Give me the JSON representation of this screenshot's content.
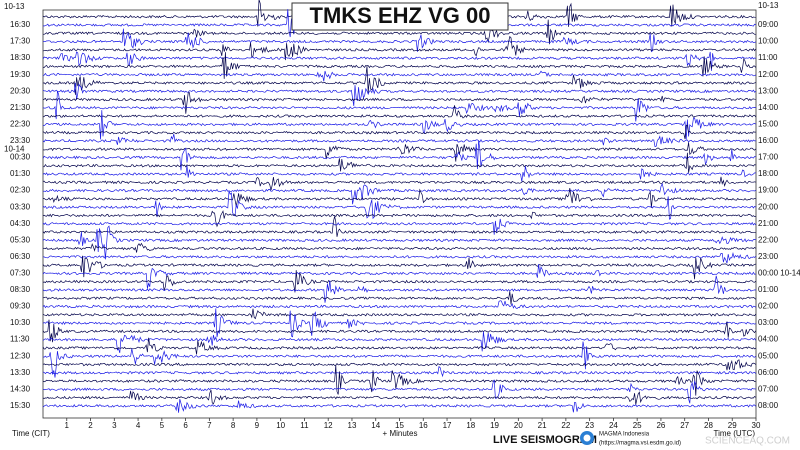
{
  "chart_data": {
    "type": "helicorder",
    "title": "TMKS EHZ VG 00",
    "xlabel": "+ Minutes",
    "left_axis_title": "Time (CIT)",
    "right_axis_title": "Time (UTC)",
    "xlim": [
      0,
      30
    ],
    "xticks": [
      1,
      2,
      3,
      4,
      5,
      6,
      7,
      8,
      9,
      10,
      11,
      12,
      13,
      14,
      15,
      16,
      17,
      18,
      19,
      20,
      21,
      22,
      23,
      24,
      25,
      26,
      27,
      28,
      29,
      30
    ],
    "left_labels": [
      "10-13",
      "16:30",
      "17:30",
      "18:30",
      "19:30",
      "20:30",
      "21:30",
      "22:30",
      "23:30",
      "10-14",
      "00:30",
      "01:30",
      "02:30",
      "03:30",
      "04:30",
      "05:30",
      "06:30",
      "07:30",
      "08:30",
      "09:30",
      "10:30",
      "11:30",
      "12:30",
      "13:30",
      "14:30",
      "15:30"
    ],
    "right_labels": [
      "10-13",
      "09:00",
      "10:00",
      "11:00",
      "12:00",
      "13:00",
      "14:00",
      "15:00",
      "16:00",
      "17:00",
      "18:00",
      "19:00",
      "20:00",
      "21:00",
      "22:00",
      "23:00",
      "00:00 10-14",
      "01:00",
      "02:00",
      "03:00",
      "04:00",
      "05:00",
      "06:00",
      "07:00",
      "08:00"
    ],
    "trace_colors": [
      "#00004a",
      "#1a1ae6"
    ]
  },
  "footer": {
    "brand": "LIVE SEISMOGRAM",
    "org": "MAGMA Indonesia",
    "url": "(https://magma.vsi.esdm.go.id)",
    "watermark": "SCIENCEAQ.COM"
  }
}
